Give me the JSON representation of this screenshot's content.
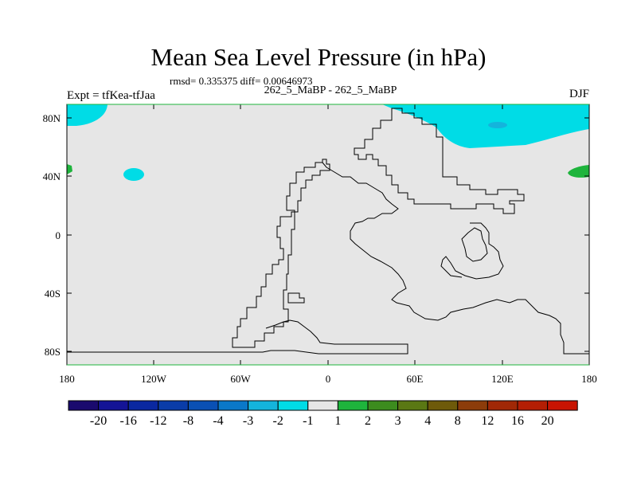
{
  "map": {
    "title": "Mean Sea Level Pressure (in hPa)",
    "stats": "rmsd= 0.335375 diff= 0.00646973",
    "subtitle": "262_5_MaBP - 262_5_MaBP",
    "left_label": "Expt = tfKea-tfJaa",
    "right_label": "DJF",
    "lat_ticks": [
      "80N",
      "40N",
      "0",
      "40S",
      "80S"
    ],
    "lon_ticks": [
      "180",
      "120W",
      "60W",
      "0",
      "60E",
      "120E",
      "180"
    ],
    "colorbar": {
      "labels": [
        "-20",
        "-16",
        "-12",
        "-8",
        "-4",
        "-3",
        "-2",
        "-1",
        "1",
        "2",
        "3",
        "4",
        "8",
        "12",
        "16",
        "20"
      ],
      "colors": [
        "#1a0a6e",
        "#141496",
        "#0a28a0",
        "#0a3ca8",
        "#0a50b4",
        "#0a78c8",
        "#14b4dc",
        "#00dce6",
        "#e6e6e6",
        "#1eb43c",
        "#3c8c1e",
        "#5a7814",
        "#6e5a0a",
        "#8c3c0a",
        "#a02806",
        "#b41e04",
        "#c81402"
      ]
    },
    "background_color": "#e6e6e6",
    "negative_fill_color": "#00dce6",
    "deep_negative_fill_color": "#14b4dc",
    "positive_fill_color": "#1eb43c"
  }
}
